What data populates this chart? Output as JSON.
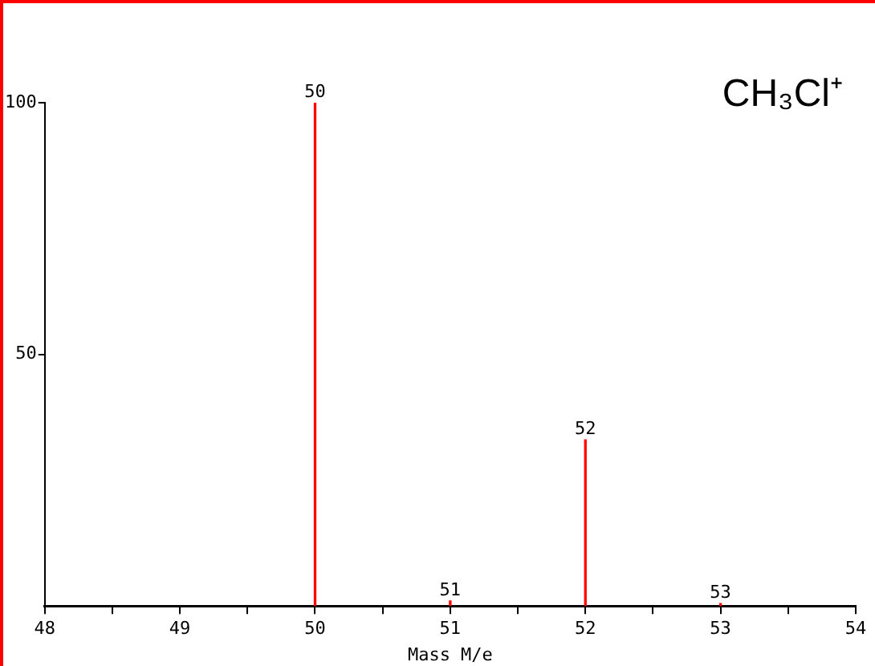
{
  "chart_data": {
    "type": "bar",
    "title": "CH₃Cl⁺",
    "xlabel": "Mass M/e",
    "x": [
      50,
      51,
      52,
      53
    ],
    "series": [
      {
        "color": "#ff0000",
        "values": [
          100,
          1,
          33,
          0.5
        ]
      }
    ],
    "xlim": [
      48,
      54
    ],
    "xticks": [
      48,
      {
        "value": 48.5,
        "label": null
      },
      49,
      {
        "value": 49.5,
        "label": null
      },
      50,
      {
        "value": 50.5,
        "label": null
      },
      51,
      {
        "value": 51.5,
        "label": null
      },
      52,
      {
        "value": 52.5,
        "label": null
      },
      53,
      {
        "value": 53.5,
        "label": null
      },
      54
    ],
    "ylim": [
      0,
      100
    ],
    "yticks": [
      50,
      100
    ],
    "annotations": [
      {
        "text": "50",
        "x": 50,
        "y": 100
      },
      {
        "text": "51",
        "x": 51,
        "y": 1
      },
      {
        "text": "52",
        "x": 52,
        "y": 33
      },
      {
        "text": "53",
        "x": 53,
        "y": 0.5
      }
    ],
    "grid": false,
    "legend": false
  }
}
